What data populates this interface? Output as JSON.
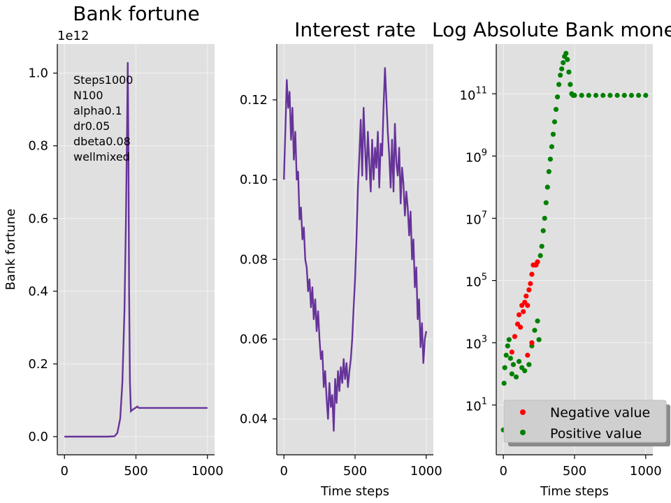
{
  "colors": {
    "line": "#663399",
    "negative": "#ff0000",
    "positive": "#008000",
    "panel_bg": "#e0e0e0",
    "grid": "#f2f2f2"
  },
  "chart_data": [
    {
      "type": "line",
      "title": "Bank fortune",
      "ylabel": "Bank fortune",
      "xlabel": "",
      "offset_text": "1e12",
      "x_ticks": [
        "0",
        "500",
        "1000"
      ],
      "y_ticks": [
        "0.0",
        "0.2",
        "0.4",
        "0.6",
        "0.8",
        "1.0"
      ],
      "xlim": [
        -50,
        1050
      ],
      "ylim": [
        -0.05,
        1.08
      ],
      "annotation": [
        "Steps1000",
        "N100",
        "alpha0.1",
        "dr0.05",
        "dbeta0.08",
        "wellmixed"
      ],
      "grid": true,
      "points": [
        [
          0,
          0
        ],
        [
          200,
          0
        ],
        [
          300,
          0
        ],
        [
          350,
          0.001
        ],
        [
          370,
          0.01
        ],
        [
          390,
          0.05
        ],
        [
          405,
          0.15
        ],
        [
          420,
          0.35
        ],
        [
          430,
          0.6
        ],
        [
          438,
          0.85
        ],
        [
          443,
          1.03
        ],
        [
          447,
          0.8
        ],
        [
          452,
          0.4
        ],
        [
          458,
          0.15
        ],
        [
          465,
          0.07
        ],
        [
          480,
          0.075
        ],
        [
          500,
          0.08
        ],
        [
          510,
          0.083
        ],
        [
          520,
          0.079
        ],
        [
          600,
          0.079
        ],
        [
          1000,
          0.079
        ]
      ]
    },
    {
      "type": "line",
      "title": "Interest rate",
      "xlabel": "Time steps",
      "ylabel": "",
      "x_ticks": [
        "0",
        "500",
        "1000"
      ],
      "y_ticks": [
        "0.04",
        "0.06",
        "0.08",
        "0.10",
        "0.12"
      ],
      "xlim": [
        -50,
        1050
      ],
      "ylim": [
        0.031,
        0.134
      ],
      "grid": true,
      "points": [
        [
          0,
          0.1
        ],
        [
          10,
          0.112
        ],
        [
          20,
          0.125
        ],
        [
          30,
          0.118
        ],
        [
          40,
          0.122
        ],
        [
          50,
          0.11
        ],
        [
          60,
          0.118
        ],
        [
          70,
          0.105
        ],
        [
          80,
          0.112
        ],
        [
          90,
          0.1
        ],
        [
          100,
          0.102
        ],
        [
          110,
          0.09
        ],
        [
          120,
          0.093
        ],
        [
          130,
          0.085
        ],
        [
          140,
          0.088
        ],
        [
          150,
          0.08
        ],
        [
          160,
          0.078
        ],
        [
          170,
          0.072
        ],
        [
          180,
          0.075
        ],
        [
          190,
          0.068
        ],
        [
          200,
          0.073
        ],
        [
          210,
          0.065
        ],
        [
          220,
          0.07
        ],
        [
          230,
          0.062
        ],
        [
          240,
          0.067
        ],
        [
          250,
          0.06
        ],
        [
          260,
          0.055
        ],
        [
          270,
          0.057
        ],
        [
          280,
          0.048
        ],
        [
          290,
          0.052
        ],
        [
          300,
          0.045
        ],
        [
          310,
          0.04
        ],
        [
          320,
          0.049
        ],
        [
          330,
          0.043
        ],
        [
          340,
          0.046
        ],
        [
          350,
          0.037
        ],
        [
          360,
          0.05
        ],
        [
          370,
          0.044
        ],
        [
          380,
          0.052
        ],
        [
          390,
          0.047
        ],
        [
          400,
          0.053
        ],
        [
          410,
          0.049
        ],
        [
          420,
          0.055
        ],
        [
          430,
          0.05
        ],
        [
          440,
          0.054
        ],
        [
          450,
          0.048
        ],
        [
          460,
          0.052
        ],
        [
          470,
          0.055
        ],
        [
          480,
          0.06
        ],
        [
          490,
          0.068
        ],
        [
          500,
          0.075
        ],
        [
          510,
          0.085
        ],
        [
          520,
          0.098
        ],
        [
          530,
          0.106
        ],
        [
          540,
          0.115
        ],
        [
          550,
          0.101
        ],
        [
          560,
          0.118
        ],
        [
          570,
          0.108
        ],
        [
          580,
          0.1
        ],
        [
          590,
          0.112
        ],
        [
          600,
          0.104
        ],
        [
          610,
          0.097
        ],
        [
          620,
          0.11
        ],
        [
          630,
          0.1
        ],
        [
          640,
          0.108
        ],
        [
          650,
          0.103
        ],
        [
          660,
          0.112
        ],
        [
          670,
          0.098
        ],
        [
          680,
          0.109
        ],
        [
          690,
          0.106
        ],
        [
          700,
          0.118
        ],
        [
          710,
          0.128
        ],
        [
          720,
          0.12
        ],
        [
          730,
          0.112
        ],
        [
          740,
          0.106
        ],
        [
          750,
          0.098
        ],
        [
          760,
          0.11
        ],
        [
          770,
          0.097
        ],
        [
          780,
          0.114
        ],
        [
          790,
          0.104
        ],
        [
          800,
          0.101
        ],
        [
          810,
          0.108
        ],
        [
          820,
          0.094
        ],
        [
          830,
          0.103
        ],
        [
          840,
          0.099
        ],
        [
          850,
          0.091
        ],
        [
          860,
          0.097
        ],
        [
          870,
          0.093
        ],
        [
          880,
          0.086
        ],
        [
          890,
          0.092
        ],
        [
          900,
          0.08
        ],
        [
          910,
          0.085
        ],
        [
          920,
          0.073
        ],
        [
          930,
          0.078
        ],
        [
          940,
          0.065
        ],
        [
          950,
          0.07
        ],
        [
          960,
          0.058
        ],
        [
          970,
          0.064
        ],
        [
          980,
          0.054
        ],
        [
          990,
          0.06
        ],
        [
          1000,
          0.062
        ]
      ]
    },
    {
      "type": "scatter",
      "title": "Log Absolute Bank money",
      "xlabel": "Time steps",
      "ylabel": "",
      "x_ticks": [
        "0",
        "500",
        "1000"
      ],
      "y_ticks_exp": [
        "1",
        "3",
        "5",
        "7",
        "9",
        "11"
      ],
      "y_tick_base": "10",
      "y_scale": "log",
      "xlim": [
        -50,
        1050
      ],
      "ylim_log10": [
        -0.6,
        12.6
      ],
      "grid": true,
      "legend": {
        "position": "lower-right",
        "entries": [
          {
            "label": "Negative value",
            "color": "#ff0000"
          },
          {
            "label": "Positive value",
            "color": "#008000"
          }
        ]
      },
      "negative_points_log10": [
        [
          60,
          2.7
        ],
        [
          80,
          3.2
        ],
        [
          100,
          3.6
        ],
        [
          110,
          3.9
        ],
        [
          120,
          3.5
        ],
        [
          130,
          4.2
        ],
        [
          140,
          4.0
        ],
        [
          150,
          4.3
        ],
        [
          160,
          4.5
        ],
        [
          170,
          4.2
        ],
        [
          180,
          4.7
        ],
        [
          190,
          4.9
        ],
        [
          200,
          5.2
        ],
        [
          210,
          5.5
        ],
        [
          220,
          5.5
        ],
        [
          230,
          5.5
        ],
        [
          240,
          5.6
        ],
        [
          200,
          3.0
        ],
        [
          170,
          2.6
        ],
        [
          190,
          1.0
        ]
      ],
      "positive_points_log10": [
        [
          0,
          0.2
        ],
        [
          5,
          1.7
        ],
        [
          10,
          2.2
        ],
        [
          20,
          2.6
        ],
        [
          30,
          2.9
        ],
        [
          40,
          3.1
        ],
        [
          50,
          2.5
        ],
        [
          60,
          2.0
        ],
        [
          70,
          2.3
        ],
        [
          90,
          1.9
        ],
        [
          110,
          2.4
        ],
        [
          130,
          2.2
        ],
        [
          150,
          2.1
        ],
        [
          180,
          2.3
        ],
        [
          200,
          2.9
        ],
        [
          220,
          3.4
        ],
        [
          240,
          3.7
        ],
        [
          250,
          3.1
        ],
        [
          260,
          5.8
        ],
        [
          270,
          6.1
        ],
        [
          280,
          6.6
        ],
        [
          290,
          7.0
        ],
        [
          300,
          7.5
        ],
        [
          310,
          8.0
        ],
        [
          320,
          8.5
        ],
        [
          330,
          8.9
        ],
        [
          340,
          9.3
        ],
        [
          350,
          9.7
        ],
        [
          360,
          10.1
        ],
        [
          370,
          10.5
        ],
        [
          380,
          10.9
        ],
        [
          390,
          11.3
        ],
        [
          400,
          11.6
        ],
        [
          410,
          11.8
        ],
        [
          420,
          12.0
        ],
        [
          430,
          12.2
        ],
        [
          440,
          12.3
        ],
        [
          450,
          12.1
        ],
        [
          460,
          11.7
        ],
        [
          470,
          11.3
        ],
        [
          480,
          11.0
        ],
        [
          490,
          10.95
        ],
        [
          500,
          10.95
        ],
        [
          550,
          10.95
        ],
        [
          600,
          10.95
        ],
        [
          650,
          10.95
        ],
        [
          700,
          10.95
        ],
        [
          750,
          10.95
        ],
        [
          800,
          10.95
        ],
        [
          850,
          10.95
        ],
        [
          900,
          10.95
        ],
        [
          950,
          10.95
        ],
        [
          1000,
          10.95
        ]
      ]
    }
  ]
}
